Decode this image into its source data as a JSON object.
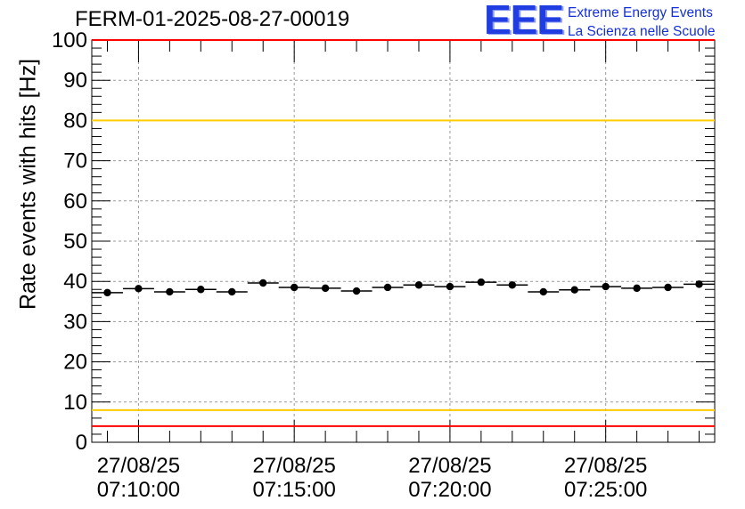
{
  "chart_data": {
    "type": "scatter",
    "title": "FERM-01-2025-08-27-00019",
    "xlabel": "",
    "ylabel": "Rate events with hits [Hz]",
    "ylim": [
      0,
      100
    ],
    "xlim": [
      "07:08:30",
      "07:28:30"
    ],
    "date": "27/08/25",
    "x_ticks": [
      "27/08/25 07:10:00",
      "27/08/25 07:15:00",
      "27/08/25 07:20:00",
      "27/08/25 07:25:00"
    ],
    "y_ticks": [
      0,
      10,
      20,
      30,
      40,
      50,
      60,
      70,
      80,
      90,
      100
    ],
    "grid": true,
    "bin_width_seconds": 60,
    "x": [
      "07:09:00",
      "07:10:00",
      "07:11:00",
      "07:12:00",
      "07:13:00",
      "07:14:00",
      "07:15:00",
      "07:16:00",
      "07:17:00",
      "07:18:00",
      "07:19:00",
      "07:20:00",
      "07:21:00",
      "07:22:00",
      "07:23:00",
      "07:24:00",
      "07:25:00",
      "07:26:00",
      "07:27:00",
      "07:28:00"
    ],
    "series": [
      {
        "values": [
          37.2,
          38.2,
          37.4,
          38.0,
          37.4,
          39.6,
          38.5,
          38.3,
          37.6,
          38.5,
          39.1,
          38.7,
          39.8,
          39.1,
          37.4,
          37.9,
          38.7,
          38.3,
          38.5,
          39.3
        ],
        "color": "#000000"
      }
    ],
    "reference_lines": [
      {
        "y": 100,
        "color": "#ff0000"
      },
      {
        "y": 80,
        "color": "#ffcc00"
      },
      {
        "y": 8,
        "color": "#ffcc00"
      },
      {
        "y": 4,
        "color": "#ff0000"
      }
    ]
  },
  "logo": {
    "mark": "EEE",
    "line1": "Extreme Energy Events",
    "line2": "La Scienza nelle Scuole",
    "color": "#1530d8"
  }
}
